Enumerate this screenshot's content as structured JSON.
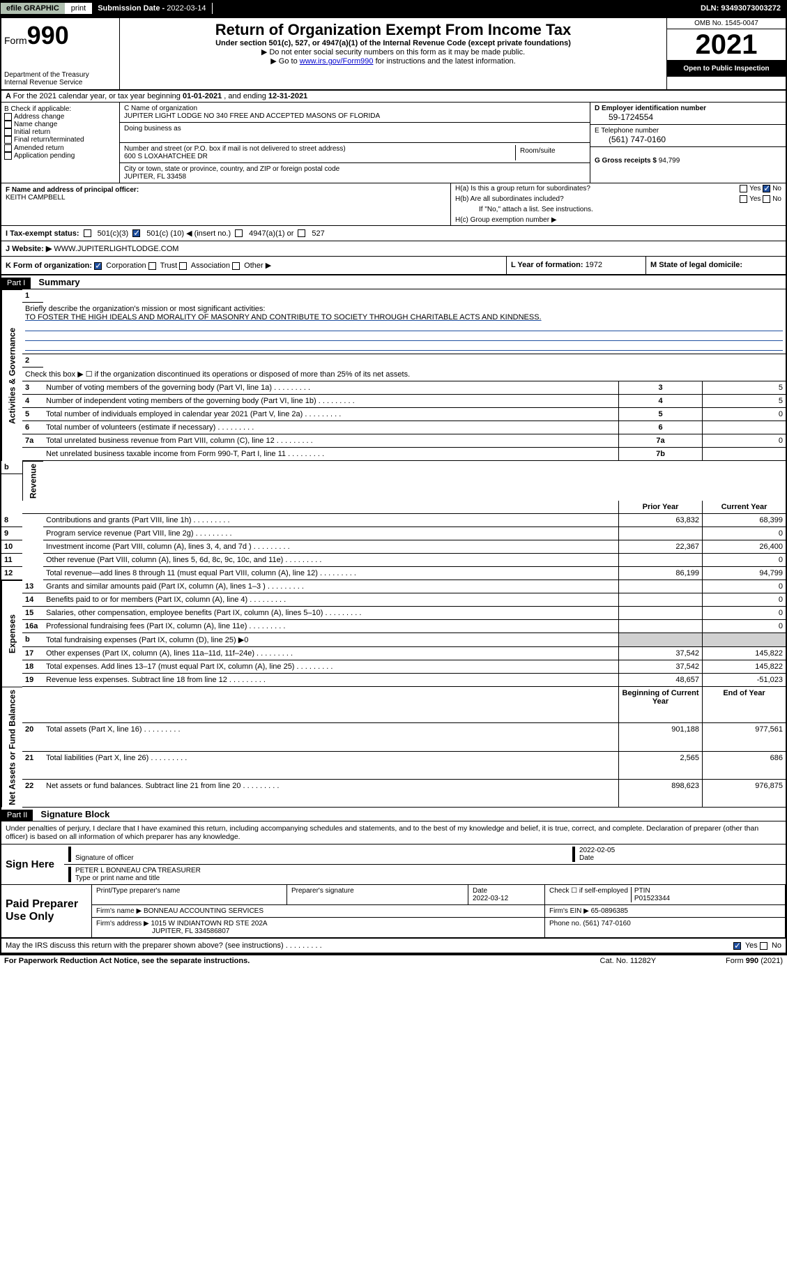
{
  "topbar": {
    "efile": "efile GRAPHIC",
    "print": "print",
    "subdate_label": "Submission Date - ",
    "subdate": "2022-03-14",
    "dln_label": "DLN: ",
    "dln": "93493073003272"
  },
  "header": {
    "form_label": "Form",
    "form_no": "990",
    "dept": "Department of the Treasury\nInternal Revenue Service",
    "title": "Return of Organization Exempt From Income Tax",
    "subtitle": "Under section 501(c), 527, or 4947(a)(1) of the Internal Revenue Code (except private foundations)",
    "instr1": "Do not enter social security numbers on this form as it may be made public.",
    "instr2_pre": "Go to ",
    "instr2_link": "www.irs.gov/Form990",
    "instr2_post": " for instructions and the latest information.",
    "omb": "OMB No. 1545-0047",
    "year": "2021",
    "inspection": "Open to Public Inspection"
  },
  "row_a": {
    "text_pre": "For the 2021 calendar year, or tax year beginning ",
    "begin": "01-01-2021",
    "text_mid": " , and ending ",
    "end": "12-31-2021"
  },
  "col_b": {
    "label": "B Check if applicable:",
    "items": [
      "Address change",
      "Name change",
      "Initial return",
      "Final return/terminated",
      "Amended return",
      "Application pending"
    ]
  },
  "col_c": {
    "name_label": "C Name of organization",
    "name": "JUPITER LIGHT LODGE NO 340 FREE AND ACCEPTED MASONS OF FLORIDA",
    "dba_label": "Doing business as",
    "addr_label": "Number and street (or P.O. box if mail is not delivered to street address)",
    "addr": "600 S LOXAHATCHEE DR",
    "room_label": "Room/suite",
    "city_label": "City or town, state or province, country, and ZIP or foreign postal code",
    "city": "JUPITER, FL  33458"
  },
  "col_d": {
    "ein_label": "D Employer identification number",
    "ein": "59-1724554",
    "phone_label": "E Telephone number",
    "phone": "(561) 747-0160",
    "gross_label": "G Gross receipts $ ",
    "gross": "94,799"
  },
  "col_f": {
    "label": "F Name and address of principal officer:",
    "name": "KEITH CAMPBELL"
  },
  "col_h": {
    "ha_label": "H(a)  Is this a group return for subordinates?",
    "hb_label": "H(b)  Are all subordinates included?",
    "hb_note": "If \"No,\" attach a list. See instructions.",
    "hc_label": "H(c)  Group exemption number ▶",
    "yes": "Yes",
    "no": "No"
  },
  "tax_status": {
    "label_i": "I   Tax-exempt status:",
    "opt1": "501(c)(3)",
    "opt2_pre": "501(c) (",
    "opt2_val": "10",
    "opt2_post": ") ◀ (insert no.)",
    "opt3": "4947(a)(1) or",
    "opt4": "527"
  },
  "section_j": {
    "label": "J   Website: ▶",
    "value": " WWW.JUPITERLIGHTLODGE.COM"
  },
  "section_k": {
    "label": "K Form of organization:",
    "opts": [
      "Corporation",
      "Trust",
      "Association",
      "Other ▶"
    ],
    "l_label": "L Year of formation: ",
    "l_val": "1972",
    "m_label": "M State of legal domicile:"
  },
  "part1": {
    "header": "Part I",
    "title": "Summary",
    "sidebar1": "Activities & Governance",
    "sidebar2": "Revenue",
    "sidebar3": "Expenses",
    "sidebar4": "Net Assets or Fund Balances",
    "line1_label": "Briefly describe the organization's mission or most significant activities:",
    "line1_text": "TO FOSTER THE HIGH IDEALS AND MORALITY OF MASONRY AND CONTRIBUTE TO SOCIETY THROUGH CHARITABLE ACTS AND KINDNESS.",
    "line2": "Check this box ▶ ☐  if the organization discontinued its operations or disposed of more than 25% of its net assets.",
    "rows_gov": [
      {
        "n": "3",
        "d": "Number of voting members of the governing body (Part VI, line 1a)",
        "k": "3",
        "v": "5"
      },
      {
        "n": "4",
        "d": "Number of independent voting members of the governing body (Part VI, line 1b)",
        "k": "4",
        "v": "5"
      },
      {
        "n": "5",
        "d": "Total number of individuals employed in calendar year 2021 (Part V, line 2a)",
        "k": "5",
        "v": "0"
      },
      {
        "n": "6",
        "d": "Total number of volunteers (estimate if necessary)",
        "k": "6",
        "v": ""
      },
      {
        "n": "7a",
        "d": "Total unrelated business revenue from Part VIII, column (C), line 12",
        "k": "7a",
        "v": "0"
      },
      {
        "n": "",
        "d": "Net unrelated business taxable income from Form 990-T, Part I, line 11",
        "k": "7b",
        "v": ""
      }
    ],
    "col_prior": "Prior Year",
    "col_current": "Current Year",
    "rows_rev": [
      {
        "n": "8",
        "d": "Contributions and grants (Part VIII, line 1h)",
        "p": "63,832",
        "c": "68,399"
      },
      {
        "n": "9",
        "d": "Program service revenue (Part VIII, line 2g)",
        "p": "",
        "c": "0"
      },
      {
        "n": "10",
        "d": "Investment income (Part VIII, column (A), lines 3, 4, and 7d )",
        "p": "22,367",
        "c": "26,400"
      },
      {
        "n": "11",
        "d": "Other revenue (Part VIII, column (A), lines 5, 6d, 8c, 9c, 10c, and 11e)",
        "p": "",
        "c": "0"
      },
      {
        "n": "12",
        "d": "Total revenue—add lines 8 through 11 (must equal Part VIII, column (A), line 12)",
        "p": "86,199",
        "c": "94,799"
      }
    ],
    "rows_exp": [
      {
        "n": "13",
        "d": "Grants and similar amounts paid (Part IX, column (A), lines 1–3 )",
        "p": "",
        "c": "0"
      },
      {
        "n": "14",
        "d": "Benefits paid to or for members (Part IX, column (A), line 4)",
        "p": "",
        "c": "0"
      },
      {
        "n": "15",
        "d": "Salaries, other compensation, employee benefits (Part IX, column (A), lines 5–10)",
        "p": "",
        "c": "0"
      },
      {
        "n": "16a",
        "d": "Professional fundraising fees (Part IX, column (A), line 11e)",
        "p": "",
        "c": "0"
      },
      {
        "n": "b",
        "d": "Total fundraising expenses (Part IX, column (D), line 25) ▶0",
        "p": "",
        "c": "",
        "shaded": true
      },
      {
        "n": "17",
        "d": "Other expenses (Part IX, column (A), lines 11a–11d, 11f–24e)",
        "p": "37,542",
        "c": "145,822"
      },
      {
        "n": "18",
        "d": "Total expenses. Add lines 13–17 (must equal Part IX, column (A), line 25)",
        "p": "37,542",
        "c": "145,822"
      },
      {
        "n": "19",
        "d": "Revenue less expenses. Subtract line 18 from line 12",
        "p": "48,657",
        "c": "-51,023"
      }
    ],
    "col_begin": "Beginning of Current Year",
    "col_end": "End of Year",
    "rows_net": [
      {
        "n": "20",
        "d": "Total assets (Part X, line 16)",
        "p": "901,188",
        "c": "977,561"
      },
      {
        "n": "21",
        "d": "Total liabilities (Part X, line 26)",
        "p": "2,565",
        "c": "686"
      },
      {
        "n": "22",
        "d": "Net assets or fund balances. Subtract line 21 from line 20",
        "p": "898,623",
        "c": "976,875"
      }
    ]
  },
  "part2": {
    "header": "Part II",
    "title": "Signature Block",
    "perjury": "Under penalties of perjury, I declare that I have examined this return, including accompanying schedules and statements, and to the best of my knowledge and belief, it is true, correct, and complete. Declaration of preparer (other than officer) is based on all information of which preparer has any knowledge.",
    "sign_here": "Sign Here",
    "sig_officer": "Signature of officer",
    "sig_date": "2022-02-05",
    "date_label": "Date",
    "officer_name": "PETER L BONNEAU CPA  TREASURER",
    "type_label": "Type or print name and title",
    "paid_label": "Paid Preparer Use Only",
    "prep_name_label": "Print/Type preparer's name",
    "prep_sig_label": "Preparer's signature",
    "prep_date_label": "Date",
    "prep_date": "2022-03-12",
    "check_label": "Check ☐ if self-employed",
    "ptin_label": "PTIN",
    "ptin": "P01523344",
    "firm_name_label": "Firm's name    ▶ ",
    "firm_name": "BONNEAU ACCOUNTING SERVICES",
    "firm_ein_label": "Firm's EIN ▶ ",
    "firm_ein": "65-0896385",
    "firm_addr_label": "Firm's address ▶ ",
    "firm_addr1": "1015 W INDIANTOWN RD STE 202A",
    "firm_addr2": "JUPITER, FL  334586807",
    "firm_phone_label": "Phone no. ",
    "firm_phone": "(561) 747-0160",
    "discuss": "May the IRS discuss this return with the preparer shown above? (see instructions)"
  },
  "footer": {
    "left": "For Paperwork Reduction Act Notice, see the separate instructions.",
    "mid": "Cat. No. 11282Y",
    "right_pre": "Form ",
    "right_bold": "990",
    "right_post": " (2021)"
  }
}
